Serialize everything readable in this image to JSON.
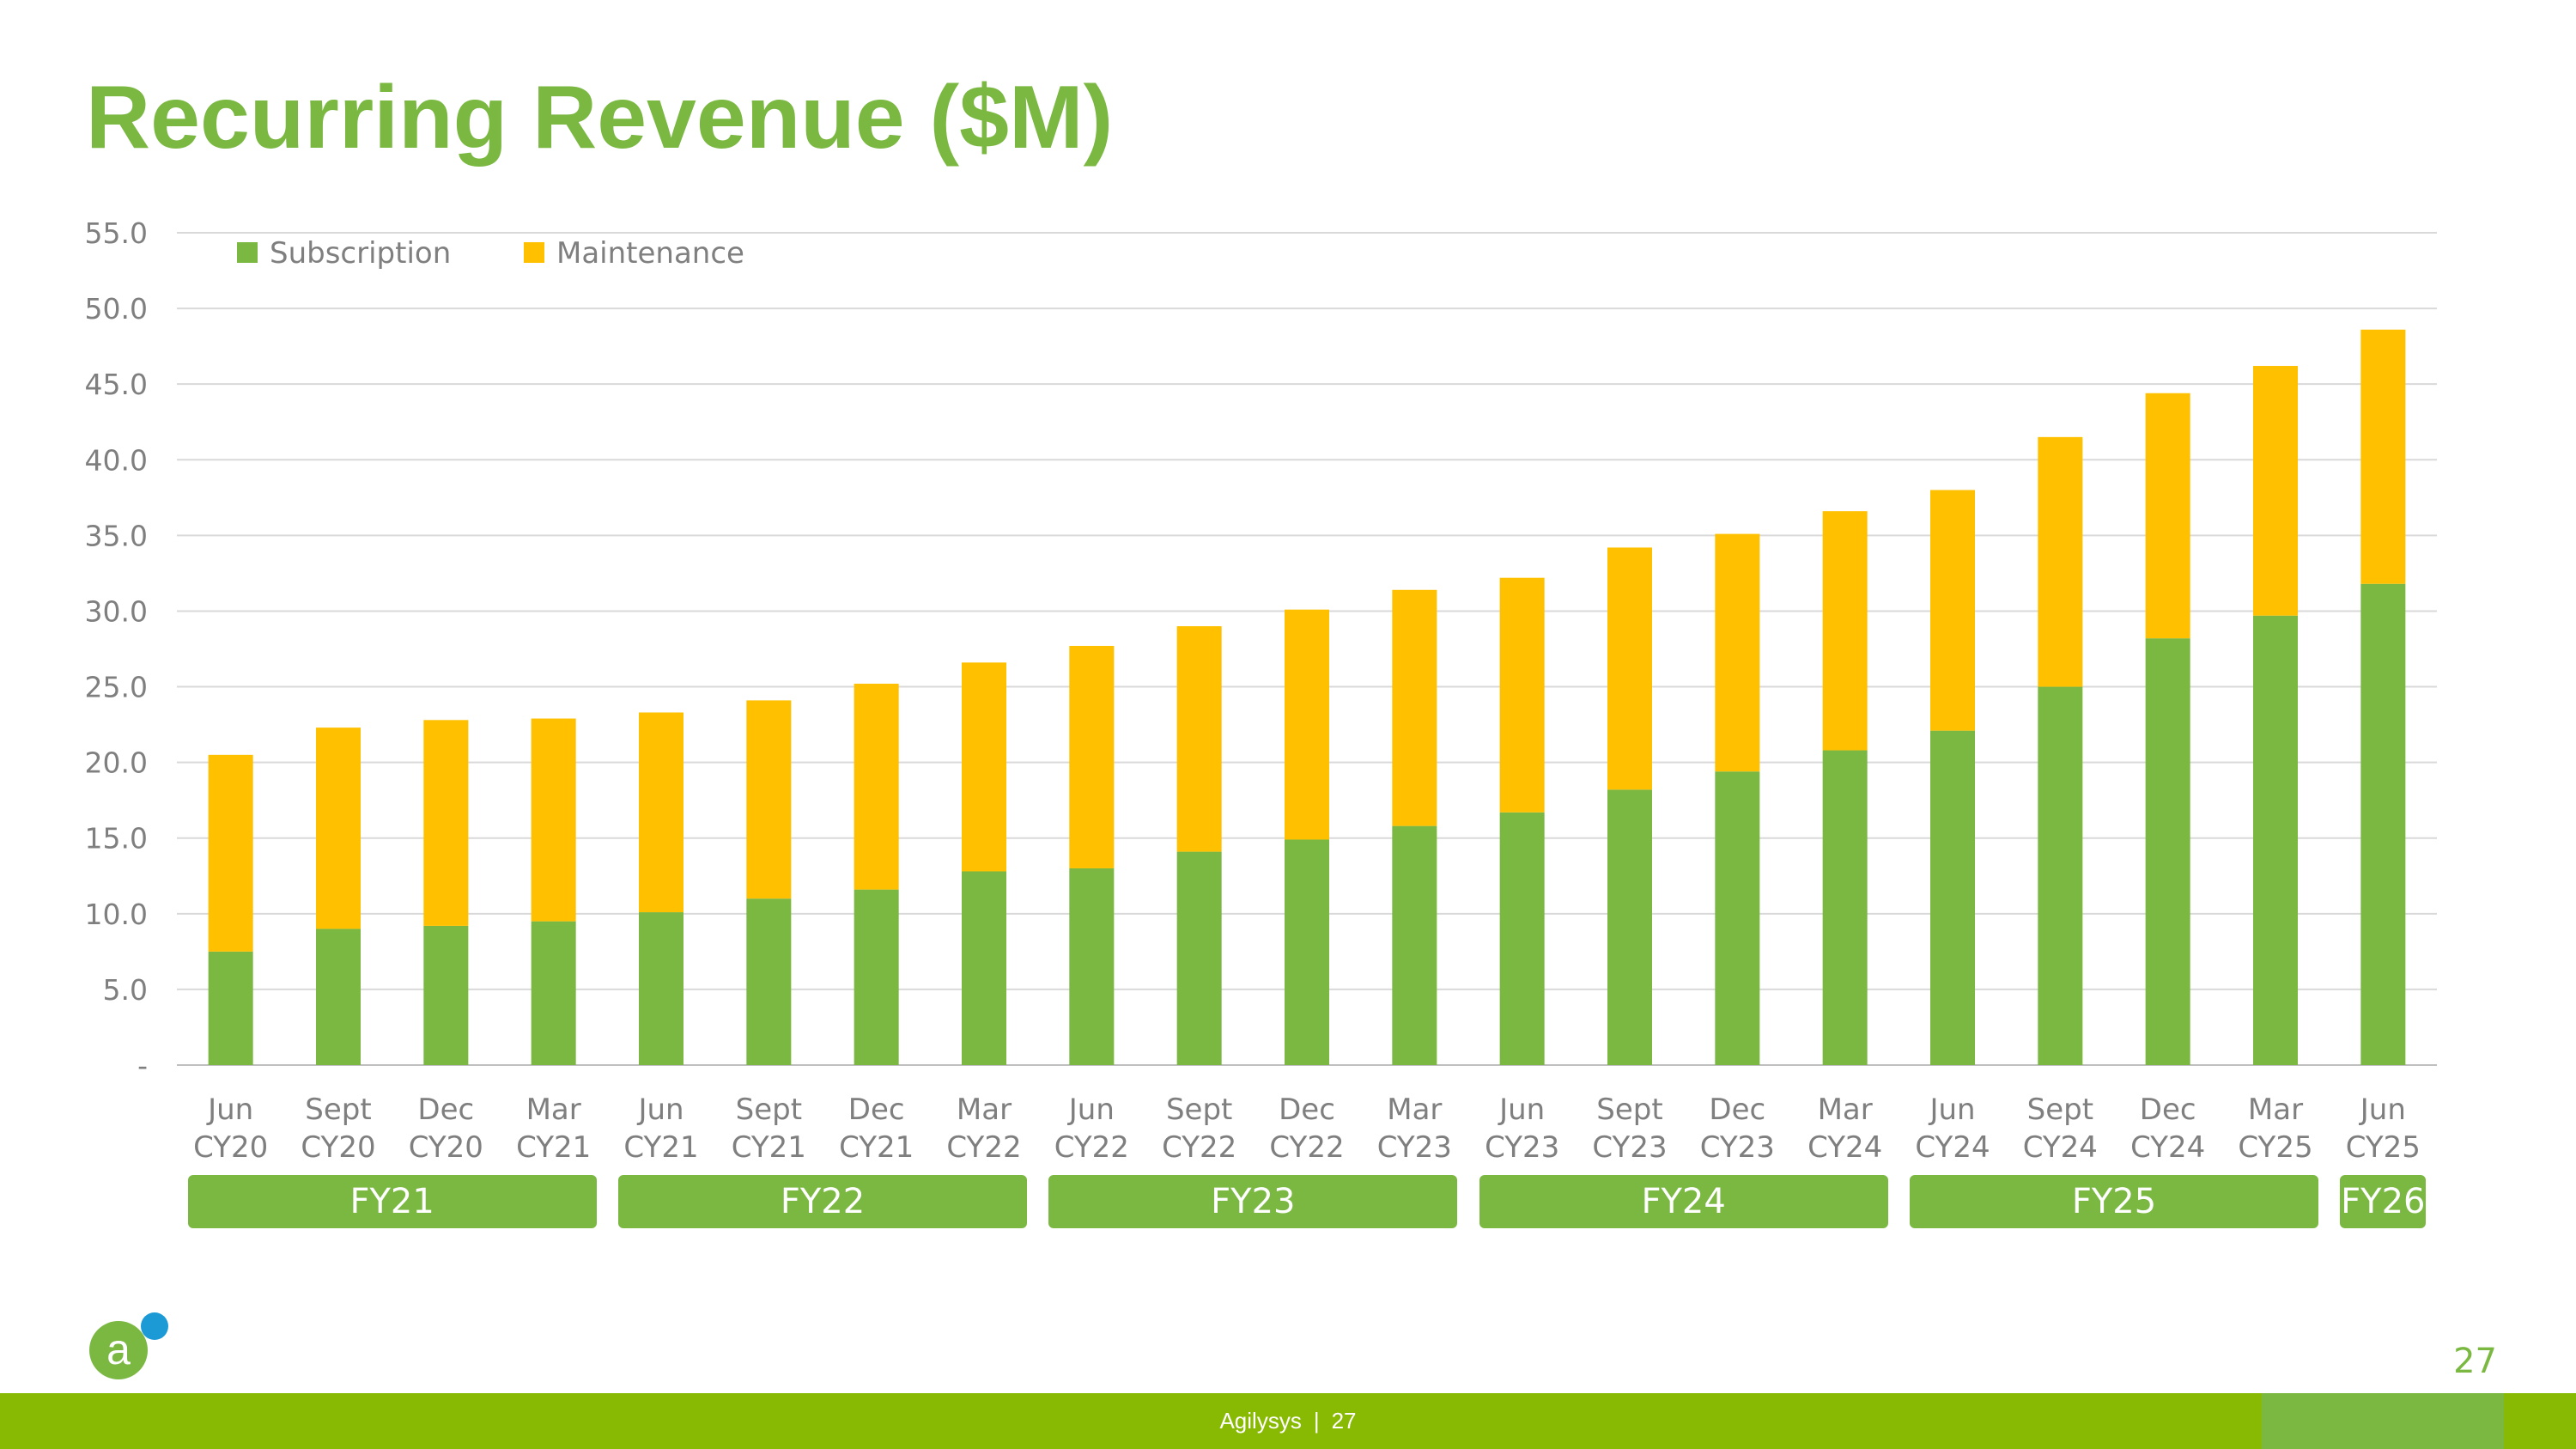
{
  "title": "Recurring Revenue ($M)",
  "colors": {
    "subscription": "#7ab842",
    "maintenance": "#ffc000",
    "brand_green": "#7ab842",
    "footer_green": "#88b903",
    "logo_blue": "#1c9ad6"
  },
  "chart_data": {
    "type": "bar",
    "stacked": true,
    "categories": [
      [
        "Jun",
        "CY20"
      ],
      [
        "Sept",
        "CY20"
      ],
      [
        "Dec",
        "CY20"
      ],
      [
        "Mar",
        "CY21"
      ],
      [
        "Jun",
        "CY21"
      ],
      [
        "Sept",
        "CY21"
      ],
      [
        "Dec",
        "CY21"
      ],
      [
        "Mar",
        "CY22"
      ],
      [
        "Jun",
        "CY22"
      ],
      [
        "Sept",
        "CY22"
      ],
      [
        "Dec",
        "CY22"
      ],
      [
        "Mar",
        "CY23"
      ],
      [
        "Jun",
        "CY23"
      ],
      [
        "Sept",
        "CY23"
      ],
      [
        "Dec",
        "CY23"
      ],
      [
        "Mar",
        "CY24"
      ],
      [
        "Jun",
        "CY24"
      ],
      [
        "Sept",
        "CY24"
      ],
      [
        "Dec",
        "CY24"
      ],
      [
        "Mar",
        "CY25"
      ],
      [
        "Jun",
        "CY25"
      ]
    ],
    "series": [
      {
        "name": "Subscription",
        "color": "#7ab842",
        "values": [
          7.5,
          9.0,
          9.2,
          9.5,
          10.1,
          11.0,
          11.6,
          12.8,
          13.0,
          14.1,
          14.9,
          15.8,
          16.7,
          18.2,
          19.4,
          20.8,
          22.1,
          25.0,
          28.2,
          29.7,
          31.8
        ]
      },
      {
        "name": "Maintenance",
        "color": "#ffc000",
        "values": [
          13.0,
          13.3,
          13.6,
          13.4,
          13.2,
          13.1,
          13.6,
          13.8,
          14.7,
          14.9,
          15.2,
          15.6,
          15.5,
          16.0,
          15.7,
          15.8,
          15.9,
          16.5,
          16.2,
          16.5,
          16.8
        ]
      }
    ],
    "ylim": [
      0,
      55
    ],
    "yticks": [
      "-",
      "5.0",
      "10.0",
      "15.0",
      "20.0",
      "25.0",
      "30.0",
      "35.0",
      "40.0",
      "45.0",
      "50.0",
      "55.0"
    ],
    "grid": true,
    "legend": "top-left",
    "fiscal_groups": [
      {
        "label": "FY21",
        "first": 0,
        "last": 3
      },
      {
        "label": "FY22",
        "first": 4,
        "last": 7
      },
      {
        "label": "FY23",
        "first": 8,
        "last": 11
      },
      {
        "label": "FY24",
        "first": 12,
        "last": 15
      },
      {
        "label": "FY25",
        "first": 16,
        "last": 19
      },
      {
        "label": "FY26",
        "first": 20,
        "last": 20
      }
    ]
  },
  "logo_letter": "a",
  "page_number": "27",
  "footer": {
    "company": "Agilysys",
    "separator": "|",
    "page": "27"
  }
}
